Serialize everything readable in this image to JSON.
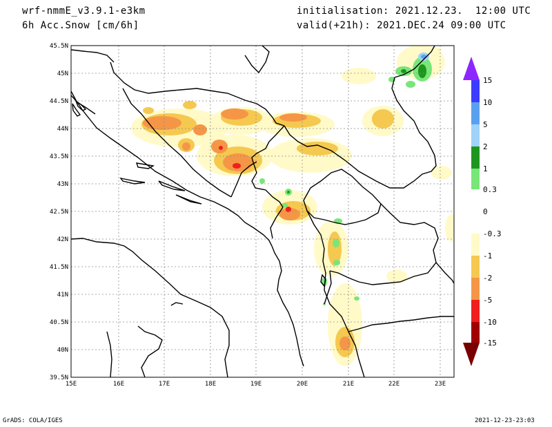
{
  "header": {
    "model": "wrf-nmmE_v3.9.1-e3km",
    "field": "6h Acc.Snow [cm/6h]",
    "init": "initialisation: 2021.12.23.  12:00 UTC",
    "valid": "valid(+21h): 2021.DEC.24 09:00 UTC"
  },
  "footer": {
    "credit": "GrADS: COLA/IGES",
    "timestamp": "2021-12-23-23:03"
  },
  "axes": {
    "lon_labels": [
      "15E",
      "16E",
      "17E",
      "18E",
      "19E",
      "20E",
      "21E",
      "22E",
      "23E"
    ],
    "lat_labels": [
      "45.5N",
      "45N",
      "44.5N",
      "44N",
      "43.5N",
      "43N",
      "42.5N",
      "42N",
      "41.5N",
      "41N",
      "40.5N",
      "40N",
      "39.5N"
    ]
  },
  "colorbar": {
    "labels": [
      "15",
      "10",
      "5",
      "2",
      "1",
      "0.3",
      "0",
      "-0.3",
      "-1",
      "-2",
      "-5",
      "-10",
      "-15"
    ],
    "colors": [
      "#3c3cff",
      "#5aa0f0",
      "#a0d2fa",
      "#1e961e",
      "#78e678",
      "#ffffff",
      "#fffac8",
      "#f5c850",
      "#f59646",
      "#f01e1e",
      "#a00000"
    ],
    "top_color": "#8c28ff",
    "bottom_color": "#780000"
  }
}
